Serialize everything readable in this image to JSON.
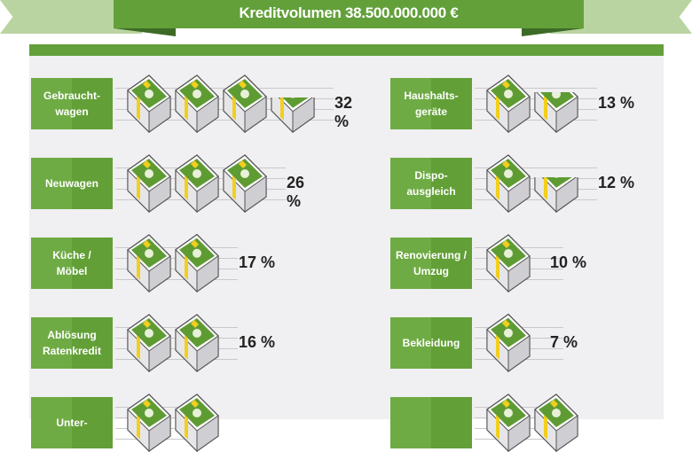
{
  "header": {
    "title": "Kreditvolumen 38.500.000.000 €"
  },
  "colors": {
    "green": "#63a03a",
    "light_green": "#b9d4a0",
    "yellow": "#f2cf1c",
    "panel": "#f0eff1"
  },
  "chart_data": {
    "type": "bar",
    "style": "pictogram (money stacks, one full stack ≈ 10 %)",
    "title": "Kreditvolumen 38.500.000.000 €",
    "unit": "%",
    "series": [
      {
        "label": "Gebraucht-\nwagen",
        "value": 32,
        "text": "32 %",
        "col": "left"
      },
      {
        "label": "Neuwagen",
        "value": 26,
        "text": "26 %",
        "col": "left"
      },
      {
        "label": "Küche /\nMöbel",
        "value": 17,
        "text": "17 %",
        "col": "left"
      },
      {
        "label": "Ablösung\nRatenkredit",
        "value": 16,
        "text": "16 %",
        "col": "left"
      },
      {
        "label": "Unter-",
        "value": null,
        "text": "",
        "col": "left"
      },
      {
        "label": "Haushalts-\ngeräte",
        "value": 13,
        "text": "13 %",
        "col": "right"
      },
      {
        "label": "Dispo-\nausgleich",
        "value": 12,
        "text": "12 %",
        "col": "right"
      },
      {
        "label": "Renovierung /\nUmzug",
        "value": 10,
        "text": "10 %",
        "col": "right"
      },
      {
        "label": "Bekleidung",
        "value": 7,
        "text": "7 %",
        "col": "right"
      },
      {
        "label": "",
        "value": null,
        "text": "",
        "col": "right"
      }
    ]
  }
}
